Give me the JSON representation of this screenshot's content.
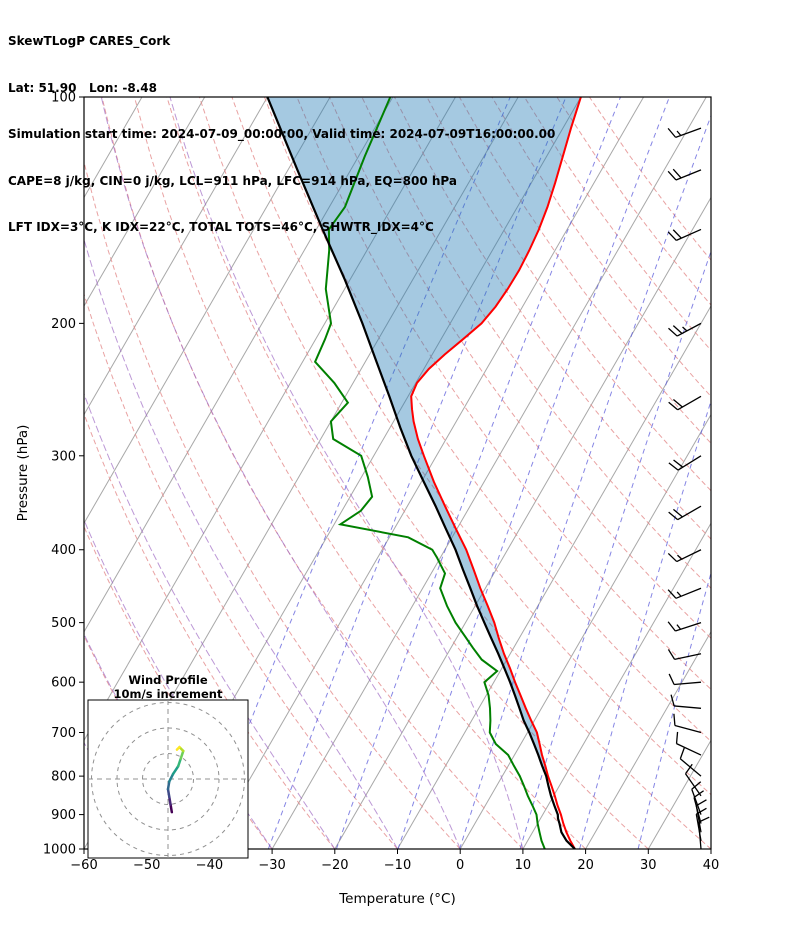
{
  "header": {
    "title_line": "SkewTLogP CARES_Cork",
    "location_line": "Lat: 51.90   Lon: -8.48",
    "time_line": "Simulation start time: 2024-07-09_00:00:00, Valid time: 2024-07-09T16:00:00.00",
    "indices_line1": "CAPE=8 j/kg, CIN=0 j/kg, LCL=911 hPa, LFC=914 hPa, EQ=800 hPa",
    "indices_line2": "LFT IDX=3°C, K IDX=22°C, TOTAL TOTS=46°C, SHWTR_IDX=4°C"
  },
  "chart_data": {
    "type": "skewt-logp",
    "xlabel": "Temperature (°C)",
    "ylabel": "Pressure (hPa)",
    "x_ticks": [
      -60,
      -50,
      -40,
      -30,
      -20,
      -10,
      0,
      10,
      20,
      30,
      40
    ],
    "y_ticks": [
      100,
      200,
      300,
      400,
      500,
      600,
      700,
      800,
      900,
      1000
    ],
    "pressure_range": [
      100,
      1000
    ],
    "temp_range": [
      -60,
      40
    ],
    "skew_angle_deg": 30,
    "shade_max_pressure": 800,
    "dry_adiabats_theta_c": [
      -40,
      -30,
      -20,
      -10,
      0,
      10,
      20,
      30,
      40,
      50,
      60,
      70,
      80,
      90,
      100,
      110,
      120,
      130,
      140,
      150,
      160
    ],
    "moist_adiabats_start_c": [
      -60,
      -50,
      -40,
      -30,
      -20,
      -10,
      0,
      10
    ],
    "mixing_ratio_g_kg": [
      0.1,
      0.3,
      0.8,
      1.8,
      3.8,
      7.5,
      14,
      25
    ],
    "temperature_profile": [
      [
        1000,
        18.3
      ],
      [
        975,
        16.8
      ],
      [
        950,
        15.4
      ],
      [
        925,
        14.1
      ],
      [
        900,
        12.9
      ],
      [
        875,
        11.5
      ],
      [
        850,
        10.2
      ],
      [
        825,
        8.8
      ],
      [
        800,
        7.3
      ],
      [
        775,
        5.9
      ],
      [
        750,
        4.4
      ],
      [
        725,
        3.0
      ],
      [
        700,
        1.5
      ],
      [
        675,
        -0.5
      ],
      [
        650,
        -2.5
      ],
      [
        625,
        -4.5
      ],
      [
        600,
        -6.6
      ],
      [
        575,
        -8.7
      ],
      [
        550,
        -11.0
      ],
      [
        525,
        -13.2
      ],
      [
        500,
        -15.4
      ],
      [
        475,
        -18.0
      ],
      [
        450,
        -20.8
      ],
      [
        425,
        -23.6
      ],
      [
        400,
        -26.6
      ],
      [
        375,
        -30.2
      ],
      [
        350,
        -34.0
      ],
      [
        325,
        -38.0
      ],
      [
        300,
        -42.0
      ],
      [
        285,
        -44.5
      ],
      [
        270,
        -46.8
      ],
      [
        260,
        -48.2
      ],
      [
        250,
        -49.5
      ],
      [
        240,
        -49.8
      ],
      [
        230,
        -49.2
      ],
      [
        220,
        -48.0
      ],
      [
        210,
        -46.5
      ],
      [
        200,
        -45.0
      ],
      [
        190,
        -44.3
      ],
      [
        180,
        -44.0
      ],
      [
        170,
        -43.9
      ],
      [
        160,
        -44.1
      ],
      [
        150,
        -44.5
      ],
      [
        140,
        -45.2
      ],
      [
        130,
        -46.2
      ],
      [
        120,
        -47.4
      ],
      [
        110,
        -48.7
      ],
      [
        100,
        -50.0
      ]
    ],
    "dewpoint_profile": [
      [
        1000,
        13.5
      ],
      [
        975,
        12.2
      ],
      [
        950,
        11.1
      ],
      [
        925,
        10.0
      ],
      [
        900,
        9.0
      ],
      [
        875,
        7.5
      ],
      [
        850,
        5.9
      ],
      [
        825,
        4.4
      ],
      [
        800,
        2.8
      ],
      [
        775,
        0.9
      ],
      [
        750,
        -1.0
      ],
      [
        725,
        -4.0
      ],
      [
        700,
        -6.0
      ],
      [
        675,
        -7.0
      ],
      [
        650,
        -8.2
      ],
      [
        625,
        -9.6
      ],
      [
        600,
        -11.5
      ],
      [
        580,
        -10.5
      ],
      [
        560,
        -14.0
      ],
      [
        540,
        -16.5
      ],
      [
        520,
        -19.0
      ],
      [
        500,
        -21.6
      ],
      [
        475,
        -24.5
      ],
      [
        450,
        -27.2
      ],
      [
        430,
        -27.8
      ],
      [
        410,
        -30.5
      ],
      [
        400,
        -32.0
      ],
      [
        385,
        -37.0
      ],
      [
        370,
        -49.0
      ],
      [
        355,
        -47.0
      ],
      [
        340,
        -46.5
      ],
      [
        320,
        -49.0
      ],
      [
        300,
        -52.0
      ],
      [
        285,
        -58.0
      ],
      [
        270,
        -60.0
      ],
      [
        255,
        -59.0
      ],
      [
        240,
        -63.0
      ],
      [
        225,
        -68.0
      ],
      [
        210,
        -68.5
      ],
      [
        200,
        -69.0
      ],
      [
        180,
        -73.0
      ],
      [
        160,
        -76.0
      ],
      [
        150,
        -78.0
      ],
      [
        140,
        -77.5
      ],
      [
        120,
        -79.0
      ],
      [
        100,
        -80.4
      ]
    ],
    "parcel_profile": [
      [
        1000,
        18.3
      ],
      [
        975,
        16.2
      ],
      [
        950,
        14.6
      ],
      [
        925,
        13.5
      ],
      [
        911,
        12.8
      ],
      [
        900,
        12.4
      ],
      [
        875,
        11.0
      ],
      [
        850,
        9.6
      ],
      [
        825,
        8.3
      ],
      [
        800,
        7.0
      ],
      [
        775,
        5.4
      ],
      [
        750,
        3.8
      ],
      [
        725,
        2.1
      ],
      [
        700,
        0.3
      ],
      [
        675,
        -1.7
      ],
      [
        650,
        -3.5
      ],
      [
        625,
        -5.4
      ],
      [
        600,
        -7.4
      ],
      [
        575,
        -9.6
      ],
      [
        550,
        -11.9
      ],
      [
        525,
        -14.4
      ],
      [
        500,
        -17.0
      ],
      [
        475,
        -19.7
      ],
      [
        450,
        -22.4
      ],
      [
        425,
        -25.3
      ],
      [
        400,
        -28.3
      ],
      [
        375,
        -31.8
      ],
      [
        350,
        -35.5
      ],
      [
        325,
        -39.6
      ],
      [
        300,
        -44.0
      ],
      [
        275,
        -48.4
      ],
      [
        250,
        -53.0
      ],
      [
        225,
        -58.2
      ],
      [
        200,
        -64.0
      ],
      [
        175,
        -70.8
      ],
      [
        150,
        -79.0
      ],
      [
        125,
        -88.5
      ],
      [
        100,
        -100.0
      ]
    ],
    "wind_barbs": [
      [
        1000,
        355,
        10
      ],
      [
        975,
        350,
        10
      ],
      [
        950,
        350,
        12
      ],
      [
        925,
        345,
        12
      ],
      [
        900,
        340,
        12
      ],
      [
        850,
        325,
        10
      ],
      [
        800,
        310,
        8
      ],
      [
        750,
        295,
        8
      ],
      [
        700,
        285,
        10
      ],
      [
        650,
        275,
        10
      ],
      [
        600,
        265,
        12
      ],
      [
        550,
        258,
        12
      ],
      [
        500,
        252,
        14
      ],
      [
        450,
        248,
        15
      ],
      [
        400,
        244,
        16
      ],
      [
        350,
        240,
        18
      ],
      [
        300,
        238,
        20
      ],
      [
        250,
        240,
        22
      ],
      [
        200,
        242,
        25
      ],
      [
        150,
        246,
        20
      ],
      [
        125,
        248,
        18
      ],
      [
        110,
        250,
        15
      ]
    ],
    "hodograph": {
      "title_line1": "Wind Profile",
      "title_line2": "10m/s increment",
      "rings_ms": [
        10,
        20,
        30
      ],
      "trace": [
        {
          "u": 1.5,
          "v": -13.0,
          "color": "#440154"
        },
        {
          "u": 1.0,
          "v": -10.0,
          "color": "#482878"
        },
        {
          "u": 0.5,
          "v": -7.0,
          "color": "#3e4a89"
        },
        {
          "u": 0.0,
          "v": -4.0,
          "color": "#31688e"
        },
        {
          "u": 0.5,
          "v": -1.0,
          "color": "#26828e"
        },
        {
          "u": 2.0,
          "v": 2.0,
          "color": "#1f9e89"
        },
        {
          "u": 4.0,
          "v": 5.0,
          "color": "#35b779"
        },
        {
          "u": 5.0,
          "v": 8.0,
          "color": "#6ece58"
        },
        {
          "u": 6.0,
          "v": 11.0,
          "color": "#b5de2b"
        },
        {
          "u": 4.5,
          "v": 12.5,
          "color": "#fde725"
        },
        {
          "u": 3.5,
          "v": 11.5,
          "color": "#fde725"
        }
      ]
    },
    "colors": {
      "temperature": "#ff0000",
      "dewpoint": "#008000",
      "parcel": "#000000",
      "shade": "#1f77b4",
      "isotherm": "#a8a8a8",
      "dry_adiabat": "#e38b8b",
      "moist_adiabat": "#a06cc4",
      "mixing_ratio": "#5c5cdb",
      "barb": "#000000",
      "hodo_grid": "#909090"
    }
  }
}
